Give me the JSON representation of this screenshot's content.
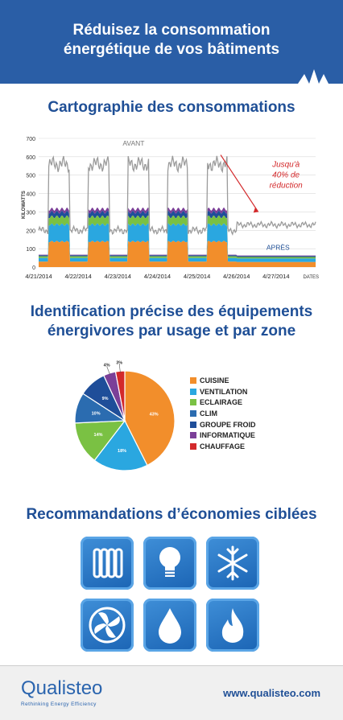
{
  "header": {
    "title_line1": "Réduisez la consommation",
    "title_line2": "énergétique de vos bâtiments"
  },
  "sections": {
    "mapping_title": "Cartographie des consommations",
    "identification_line1": "Identification précise des équipements",
    "identification_line2": "énergivores par usage et par zone",
    "recommendations_title": "Recommandations d’économies ciblées"
  },
  "chart_data": [
    {
      "type": "area",
      "ylabel": "KILOWATTS",
      "xlabel": "DATES",
      "ylim": [
        0,
        700
      ],
      "yticks": [
        0,
        100,
        200,
        300,
        400,
        500,
        600,
        700
      ],
      "grid": true,
      "x_tick_labels": [
        "4/21/2014",
        "4/22/2014",
        "4/23/2014",
        "4/24/2014",
        "4/25/2014",
        "4/26/2014",
        "4/27/2014"
      ],
      "annotations": {
        "before": "AVANT",
        "after": "APRÈS",
        "reduction_line1": "Jusqu'à",
        "reduction_line2": "40% de",
        "reduction_line3": "réduction"
      },
      "series": [
        {
          "name": "AVANT",
          "description": "total before",
          "day_peak": 560,
          "night": 200
        },
        {
          "name": "APRÈS",
          "description": "total after",
          "day_peak": 230,
          "night": 200
        }
      ],
      "stack_colors": [
        "#f28e2b",
        "#2aa7e0",
        "#7ac143",
        "#1f4e99",
        "#7b3f98"
      ],
      "line_color": "#9b9b9b",
      "arrow_color": "#d3292b"
    },
    {
      "type": "pie",
      "slices": [
        {
          "name": "CUISINE",
          "value": 43,
          "label": "43%",
          "color": "#f28e2b"
        },
        {
          "name": "VENTILATION",
          "value": 18,
          "label": "18%",
          "color": "#2aa7e0"
        },
        {
          "name": "ECLAIRAGE",
          "value": 14,
          "label": "14%",
          "color": "#7ac143"
        },
        {
          "name": "CLIM",
          "value": 10,
          "label": "10%",
          "color": "#2b6cb0"
        },
        {
          "name": "GROUPE FROID",
          "value": 9,
          "label": "9%",
          "color": "#1f4e99"
        },
        {
          "name": "INFORMATIQUE",
          "value": 4,
          "label": "4%",
          "color": "#7b3f98"
        },
        {
          "name": "CHAUFFAGE",
          "value": 3,
          "label": "3%",
          "color": "#d3292b"
        }
      ],
      "legend_position": "right"
    }
  ],
  "icons": [
    "radiator-icon",
    "lightbulb-icon",
    "snowflake-icon",
    "fan-icon",
    "water-drop-icon",
    "flame-icon"
  ],
  "footer": {
    "logo": "Qualisteo",
    "tagline": "Rethinking Energy Efficiency",
    "website": "www.qualisteo.com"
  }
}
